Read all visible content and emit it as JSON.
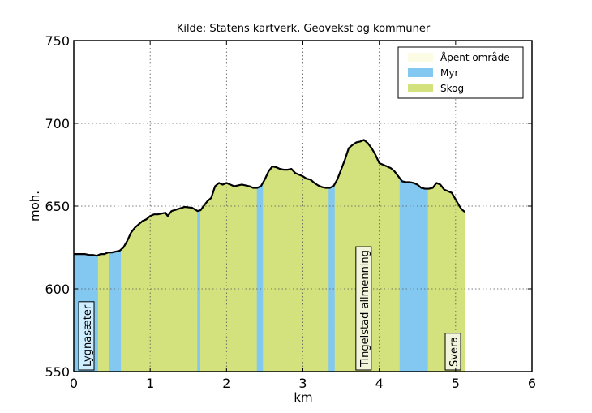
{
  "chart_data": {
    "type": "area",
    "title": "Kilde: Statens kartverk, Geovekst og kommuner",
    "xlabel": "km",
    "ylabel": "moh.",
    "xlim": [
      0,
      6
    ],
    "ylim": [
      550,
      750
    ],
    "xticks": [
      "0",
      "1",
      "2",
      "3",
      "4",
      "5",
      "6"
    ],
    "yticks": [
      "550",
      "600",
      "650",
      "700",
      "750"
    ],
    "grid": true,
    "legend_position": "top-right",
    "legend": [
      {
        "label": "Åpent område",
        "color": "#fcfce4"
      },
      {
        "label": "Myr",
        "color": "#82c8f0"
      },
      {
        "label": "Skog",
        "color": "#d3e27c"
      }
    ],
    "profile": [
      [
        0.0,
        621
      ],
      [
        0.1,
        621
      ],
      [
        0.15,
        621
      ],
      [
        0.2,
        620.5
      ],
      [
        0.25,
        620.5
      ],
      [
        0.3,
        620
      ],
      [
        0.35,
        621
      ],
      [
        0.4,
        621
      ],
      [
        0.45,
        622
      ],
      [
        0.5,
        622
      ],
      [
        0.55,
        622.5
      ],
      [
        0.6,
        623
      ],
      [
        0.65,
        625
      ],
      [
        0.7,
        629
      ],
      [
        0.75,
        634
      ],
      [
        0.8,
        637
      ],
      [
        0.85,
        639
      ],
      [
        0.9,
        641
      ],
      [
        0.95,
        642
      ],
      [
        1.0,
        644
      ],
      [
        1.05,
        645
      ],
      [
        1.1,
        645
      ],
      [
        1.15,
        645.5
      ],
      [
        1.2,
        646
      ],
      [
        1.23,
        644
      ],
      [
        1.28,
        647
      ],
      [
        1.35,
        648
      ],
      [
        1.45,
        649.5
      ],
      [
        1.55,
        649
      ],
      [
        1.62,
        647
      ],
      [
        1.66,
        647.5
      ],
      [
        1.7,
        650
      ],
      [
        1.75,
        653
      ],
      [
        1.8,
        655
      ],
      [
        1.85,
        662
      ],
      [
        1.9,
        664
      ],
      [
        1.95,
        663
      ],
      [
        2.0,
        664
      ],
      [
        2.05,
        663
      ],
      [
        2.1,
        662
      ],
      [
        2.2,
        663
      ],
      [
        2.3,
        662
      ],
      [
        2.35,
        661
      ],
      [
        2.4,
        661
      ],
      [
        2.45,
        662
      ],
      [
        2.5,
        666
      ],
      [
        2.55,
        671
      ],
      [
        2.6,
        674
      ],
      [
        2.65,
        673.5
      ],
      [
        2.7,
        672.5
      ],
      [
        2.75,
        672
      ],
      [
        2.8,
        672
      ],
      [
        2.85,
        672.5
      ],
      [
        2.9,
        670
      ],
      [
        2.95,
        669
      ],
      [
        3.0,
        668
      ],
      [
        3.05,
        666.5
      ],
      [
        3.1,
        666
      ],
      [
        3.15,
        664
      ],
      [
        3.2,
        662.5
      ],
      [
        3.25,
        661.5
      ],
      [
        3.3,
        661
      ],
      [
        3.35,
        661
      ],
      [
        3.4,
        662
      ],
      [
        3.45,
        666
      ],
      [
        3.5,
        672
      ],
      [
        3.55,
        678
      ],
      [
        3.6,
        685
      ],
      [
        3.65,
        687
      ],
      [
        3.7,
        688.5
      ],
      [
        3.75,
        689
      ],
      [
        3.8,
        690
      ],
      [
        3.85,
        688
      ],
      [
        3.9,
        685
      ],
      [
        3.95,
        681
      ],
      [
        4.0,
        676
      ],
      [
        4.05,
        675
      ],
      [
        4.1,
        674
      ],
      [
        4.15,
        673
      ],
      [
        4.2,
        671
      ],
      [
        4.25,
        668
      ],
      [
        4.3,
        665
      ],
      [
        4.35,
        664.5
      ],
      [
        4.4,
        664.5
      ],
      [
        4.45,
        664
      ],
      [
        4.5,
        663
      ],
      [
        4.55,
        661
      ],
      [
        4.6,
        660.5
      ],
      [
        4.65,
        660.5
      ],
      [
        4.7,
        661
      ],
      [
        4.75,
        664
      ],
      [
        4.8,
        663
      ],
      [
        4.85,
        660
      ],
      [
        4.9,
        659
      ],
      [
        4.95,
        658
      ],
      [
        5.0,
        654
      ],
      [
        5.05,
        650
      ],
      [
        5.08,
        648
      ],
      [
        5.12,
        646.5
      ]
    ],
    "segments": [
      {
        "type": "Myr",
        "x0": 0.0,
        "x1": 0.32
      },
      {
        "type": "Skog",
        "x0": 0.32,
        "x1": 0.46
      },
      {
        "type": "Myr",
        "x0": 0.46,
        "x1": 0.62
      },
      {
        "type": "Skog",
        "x0": 0.62,
        "x1": 1.62
      },
      {
        "type": "Myr",
        "x0": 1.62,
        "x1": 1.66
      },
      {
        "type": "Skog",
        "x0": 1.66,
        "x1": 2.4
      },
      {
        "type": "Myr",
        "x0": 2.4,
        "x1": 2.48
      },
      {
        "type": "Skog",
        "x0": 2.48,
        "x1": 3.34
      },
      {
        "type": "Myr",
        "x0": 3.34,
        "x1": 3.42
      },
      {
        "type": "Skog",
        "x0": 3.42,
        "x1": 4.27
      },
      {
        "type": "Myr",
        "x0": 4.27,
        "x1": 4.64
      },
      {
        "type": "Skog",
        "x0": 4.64,
        "x1": 5.12
      }
    ],
    "places": [
      {
        "name": "Lygnasæter",
        "x": 0.17,
        "bg": "#cfeeff"
      },
      {
        "name": "Tingelstad allmenning",
        "x": 3.8,
        "bg": "#f2f5dc"
      },
      {
        "name": "Svera",
        "x": 4.97,
        "bg": "#f2f5dc"
      }
    ]
  }
}
